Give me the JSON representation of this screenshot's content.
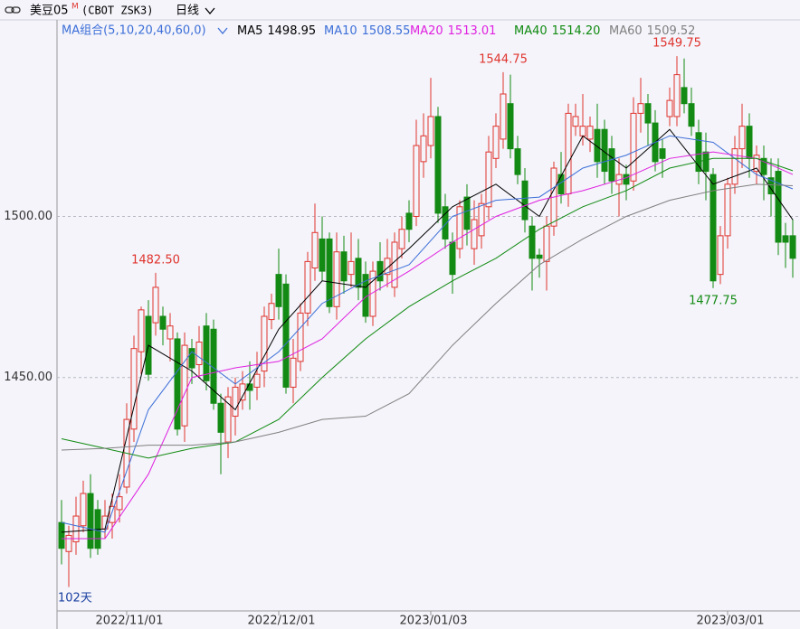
{
  "header": {
    "symbol": "美豆05",
    "superscript": "M",
    "code": "(CBOT ZSK3)",
    "period": "日线"
  },
  "chart_data": {
    "type": "candlestick",
    "ma_title": "MA组合(5,10,20,40,60,0)",
    "days_label": "102天",
    "up_color": "#e0332d",
    "down_color": "#138a13",
    "ylim": [
      1377,
      1561
    ],
    "yticks": [
      {
        "value": 1450,
        "label": "1450.00"
      },
      {
        "value": 1500,
        "label": "1500.00"
      }
    ],
    "grid": true,
    "xticks": [
      {
        "value": 9,
        "label": "2022/11/01"
      },
      {
        "value": 30,
        "label": "2022/12/01"
      },
      {
        "value": 51,
        "label": "2023/01/03"
      },
      {
        "value": 92,
        "label": "2023/03/01"
      }
    ],
    "open": [
      1405,
      1396,
      1399,
      1404,
      1414,
      1409,
      1403,
      1405,
      1409,
      1416,
      1434,
      1458,
      1469,
      1467,
      1469,
      1462,
      1462,
      1435,
      1459,
      1454,
      1466,
      1465,
      1442,
      1430,
      1438,
      1443,
      1448,
      1447,
      1452,
      1468,
      1482,
      1479,
      1447,
      1455,
      1470,
      1484,
      1493,
      1493,
      1472,
      1489,
      1482,
      1487,
      1482,
      1469,
      1486,
      1482,
      1478,
      1490,
      1501,
      1500,
      1517,
      1522,
      1531,
      1503,
      1492,
      1490,
      1506,
      1490,
      1494,
      1503,
      1518,
      1524,
      1535,
      1521,
      1511,
      1497,
      1488,
      1486,
      1497,
      1513,
      1507,
      1528,
      1525,
      1524,
      1527,
      1527,
      1521,
      1510,
      1513,
      1511,
      1532,
      1535,
      1529,
      1521,
      1531,
      1531,
      1540,
      1535,
      1526,
      1520,
      1513,
      1482,
      1494,
      1510,
      1521,
      1528,
      1514,
      1518,
      1512,
      1514,
      1494,
      1494
    ],
    "high": [
      1412,
      1404,
      1413,
      1418,
      1420,
      1412,
      1412,
      1414,
      1420,
      1442,
      1463,
      1472,
      1474,
      1482.5,
      1472,
      1470,
      1464,
      1464,
      1462,
      1466,
      1470,
      1468,
      1445,
      1447,
      1450,
      1452,
      1455,
      1458,
      1472,
      1476,
      1490,
      1482,
      1462,
      1473,
      1489,
      1504,
      1500,
      1495,
      1495,
      1494,
      1495,
      1493,
      1486,
      1486,
      1492,
      1493,
      1495,
      1500,
      1505,
      1530,
      1532,
      1543,
      1534,
      1507,
      1495,
      1505,
      1510,
      1505,
      1507,
      1525,
      1532,
      1544.75,
      1544,
      1525,
      1515,
      1500,
      1490,
      1500,
      1517,
      1520,
      1535,
      1535,
      1538,
      1531,
      1535,
      1530,
      1525,
      1518,
      1516,
      1537,
      1543,
      1538,
      1533,
      1524,
      1540,
      1549.75,
      1549,
      1540,
      1530,
      1526,
      1515,
      1497,
      1512,
      1525,
      1535,
      1532,
      1522,
      1522,
      1518,
      1518,
      1498,
      1499
    ],
    "low": [
      1392,
      1385,
      1395,
      1402,
      1394,
      1395,
      1400,
      1400,
      1405,
      1414,
      1430,
      1451,
      1449,
      1463,
      1460,
      1455,
      1432,
      1430,
      1448,
      1450,
      1446,
      1440,
      1420,
      1425,
      1432,
      1440,
      1440,
      1443,
      1447,
      1465,
      1468,
      1445,
      1442,
      1452,
      1466,
      1480,
      1480,
      1470,
      1468,
      1476,
      1478,
      1474,
      1467,
      1466,
      1477,
      1478,
      1475,
      1487,
      1492,
      1497,
      1512,
      1518,
      1498,
      1490,
      1476,
      1487,
      1491,
      1485,
      1490,
      1499,
      1515,
      1521,
      1518,
      1510,
      1495,
      1477,
      1481,
      1477,
      1494,
      1504,
      1503,
      1525,
      1522,
      1520,
      1512,
      1510,
      1507,
      1500,
      1505,
      1508,
      1526,
      1522,
      1514,
      1512,
      1528,
      1528,
      1532,
      1525,
      1510,
      1505,
      1477.75,
      1479,
      1490,
      1507,
      1515,
      1512,
      1510,
      1505,
      1500,
      1488,
      1484,
      1481
    ],
    "close": [
      1397,
      1401,
      1407,
      1414,
      1397,
      1397,
      1407,
      1410,
      1413,
      1437,
      1459,
      1471,
      1451,
      1478,
      1465,
      1466,
      1434,
      1460,
      1453,
      1461,
      1449,
      1442,
      1433,
      1444,
      1447,
      1448,
      1446,
      1451,
      1469,
      1473,
      1472,
      1447,
      1456,
      1470,
      1486,
      1495,
      1483,
      1472,
      1489,
      1480,
      1486,
      1478,
      1469,
      1483,
      1480,
      1487,
      1492,
      1496,
      1496,
      1522,
      1525,
      1531,
      1501,
      1493,
      1482,
      1503,
      1496,
      1499,
      1504,
      1520,
      1528,
      1538,
      1521,
      1513,
      1499,
      1487,
      1487,
      1497,
      1515,
      1507,
      1532,
      1531,
      1528,
      1528,
      1517,
      1514,
      1511,
      1513,
      1510,
      1532,
      1535,
      1529,
      1517,
      1518,
      1536,
      1544,
      1535,
      1528,
      1514,
      1514,
      1480,
      1494,
      1510,
      1521,
      1528,
      1518,
      1519,
      1513,
      1507,
      1492,
      1492,
      1487
    ],
    "annotations": [
      {
        "x": 13,
        "y": 1482.5,
        "label": "1482.50"
      },
      {
        "x": 61,
        "y": 1544.75,
        "label": "1544.75"
      },
      {
        "x": 85,
        "y": 1549.75,
        "label": "1549.75"
      },
      {
        "x": 90,
        "y": 1477.75,
        "label": "1477.75"
      }
    ],
    "ma_x": [
      0,
      6,
      12,
      18,
      24,
      30,
      36,
      42,
      48,
      54,
      60,
      66,
      72,
      78,
      84,
      90,
      96,
      101
    ],
    "series": [
      {
        "name": "MA5",
        "color": "#000000",
        "value_label": "1498.95",
        "values": [
          1402,
          1403,
          1460,
          1452,
          1440,
          1465,
          1480,
          1478,
          1490,
          1503,
          1510,
          1500,
          1525,
          1515,
          1527,
          1510,
          1515,
          1498.95
        ]
      },
      {
        "name": "MA10",
        "color": "#3d6fd8",
        "value_label": "1508.55",
        "values": [
          1405,
          1402,
          1440,
          1458,
          1448,
          1458,
          1473,
          1480,
          1485,
          1500,
          1505,
          1506,
          1515,
          1519,
          1525,
          1523,
          1513,
          1508.55
        ]
      },
      {
        "name": "MA20",
        "color": "#e020e0",
        "value_label": "1513.01",
        "values": [
          1400,
          1400,
          1420,
          1450,
          1453,
          1455,
          1462,
          1475,
          1483,
          1492,
          1500,
          1505,
          1508,
          1512,
          1518,
          1520,
          1518,
          1513.01
        ]
      },
      {
        "name": "MA40",
        "color": "#118a11",
        "value_label": "1514.20",
        "values": [
          1431,
          1428,
          1425,
          1428,
          1430,
          1437,
          1450,
          1462,
          1472,
          1480,
          1487,
          1496,
          1503,
          1508,
          1515,
          1518,
          1518,
          1514.2
        ]
      },
      {
        "name": "MA60",
        "color": "#808080",
        "value_label": "1509.52",
        "values": [
          1427.5,
          1428,
          1429,
          1429,
          1430,
          1433,
          1437,
          1438,
          1445,
          1460,
          1473,
          1485,
          1493,
          1500,
          1505,
          1508,
          1510,
          1509.52
        ]
      }
    ]
  }
}
